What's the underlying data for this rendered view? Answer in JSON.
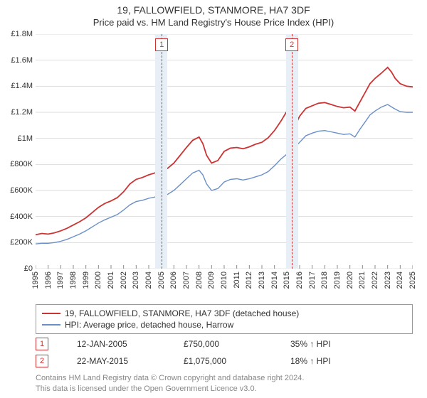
{
  "title": "19, FALLOWFIELD, STANMORE, HA7 3DF",
  "subtitle": "Price paid vs. HM Land Registry's House Price Index (HPI)",
  "chart": {
    "type": "line",
    "background_color": "#ffffff",
    "grid_color": "#dddddd",
    "x": {
      "min": 1995,
      "max": 2025,
      "ticks": [
        1995,
        1996,
        1997,
        1998,
        1999,
        2000,
        2001,
        2002,
        2003,
        2004,
        2005,
        2006,
        2007,
        2008,
        2009,
        2010,
        2011,
        2012,
        2013,
        2014,
        2015,
        2016,
        2017,
        2018,
        2019,
        2020,
        2021,
        2022,
        2023,
        2024,
        2025
      ]
    },
    "y": {
      "min": 0,
      "max": 1800000,
      "ticks": [
        0,
        200000,
        400000,
        600000,
        800000,
        1000000,
        1200000,
        1400000,
        1600000,
        1800000
      ],
      "tick_labels": [
        "£0",
        "£200K",
        "£400K",
        "£600K",
        "£800K",
        "£1M",
        "£1.2M",
        "£1.4M",
        "£1.6M",
        "£1.8M"
      ],
      "label_fontsize": 11
    },
    "series": [
      {
        "name": "property",
        "label": "19, FALLOWFIELD, STANMORE, HA7 3DF (detached house)",
        "color": "#cc3333",
        "width": 1.8,
        "points": [
          [
            1995.0,
            260000
          ],
          [
            1995.5,
            270000
          ],
          [
            1996.0,
            265000
          ],
          [
            1996.5,
            275000
          ],
          [
            1997.0,
            290000
          ],
          [
            1997.5,
            310000
          ],
          [
            1998.0,
            335000
          ],
          [
            1998.5,
            360000
          ],
          [
            1999.0,
            390000
          ],
          [
            1999.5,
            430000
          ],
          [
            2000.0,
            470000
          ],
          [
            2000.5,
            500000
          ],
          [
            2001.0,
            520000
          ],
          [
            2001.5,
            545000
          ],
          [
            2002.0,
            590000
          ],
          [
            2002.5,
            650000
          ],
          [
            2003.0,
            685000
          ],
          [
            2003.5,
            700000
          ],
          [
            2004.0,
            720000
          ],
          [
            2004.5,
            735000
          ],
          [
            2005.0,
            750000
          ],
          [
            2005.5,
            770000
          ],
          [
            2006.0,
            810000
          ],
          [
            2006.5,
            870000
          ],
          [
            2007.0,
            930000
          ],
          [
            2007.5,
            985000
          ],
          [
            2008.0,
            1010000
          ],
          [
            2008.3,
            960000
          ],
          [
            2008.6,
            870000
          ],
          [
            2009.0,
            810000
          ],
          [
            2009.5,
            830000
          ],
          [
            2010.0,
            900000
          ],
          [
            2010.5,
            925000
          ],
          [
            2011.0,
            930000
          ],
          [
            2011.5,
            920000
          ],
          [
            2012.0,
            935000
          ],
          [
            2012.5,
            955000
          ],
          [
            2013.0,
            970000
          ],
          [
            2013.5,
            1005000
          ],
          [
            2014.0,
            1060000
          ],
          [
            2014.5,
            1130000
          ],
          [
            2015.0,
            1210000
          ],
          [
            2015.1,
            1100000
          ],
          [
            2015.4,
            1075000
          ],
          [
            2015.7,
            1110000
          ],
          [
            2016.0,
            1170000
          ],
          [
            2016.5,
            1230000
          ],
          [
            2017.0,
            1250000
          ],
          [
            2017.5,
            1270000
          ],
          [
            2018.0,
            1275000
          ],
          [
            2018.5,
            1260000
          ],
          [
            2019.0,
            1245000
          ],
          [
            2019.5,
            1235000
          ],
          [
            2020.0,
            1240000
          ],
          [
            2020.4,
            1210000
          ],
          [
            2020.8,
            1280000
          ],
          [
            2021.2,
            1350000
          ],
          [
            2021.6,
            1420000
          ],
          [
            2022.0,
            1460000
          ],
          [
            2022.5,
            1500000
          ],
          [
            2023.0,
            1545000
          ],
          [
            2023.3,
            1510000
          ],
          [
            2023.6,
            1460000
          ],
          [
            2024.0,
            1420000
          ],
          [
            2024.5,
            1400000
          ],
          [
            2025.0,
            1395000
          ]
        ]
      },
      {
        "name": "hpi",
        "label": "HPI: Average price, detached house, Harrow",
        "color": "#6a8fc7",
        "width": 1.4,
        "points": [
          [
            1995.0,
            190000
          ],
          [
            1995.5,
            195000
          ],
          [
            1996.0,
            195000
          ],
          [
            1996.5,
            200000
          ],
          [
            1997.0,
            210000
          ],
          [
            1997.5,
            225000
          ],
          [
            1998.0,
            245000
          ],
          [
            1998.5,
            265000
          ],
          [
            1999.0,
            290000
          ],
          [
            1999.5,
            320000
          ],
          [
            2000.0,
            350000
          ],
          [
            2000.5,
            375000
          ],
          [
            2001.0,
            395000
          ],
          [
            2001.5,
            415000
          ],
          [
            2002.0,
            450000
          ],
          [
            2002.5,
            490000
          ],
          [
            2003.0,
            515000
          ],
          [
            2003.5,
            525000
          ],
          [
            2004.0,
            540000
          ],
          [
            2004.5,
            550000
          ],
          [
            2005.0,
            555000
          ],
          [
            2005.5,
            570000
          ],
          [
            2006.0,
            600000
          ],
          [
            2006.5,
            645000
          ],
          [
            2007.0,
            690000
          ],
          [
            2007.5,
            735000
          ],
          [
            2008.0,
            755000
          ],
          [
            2008.3,
            720000
          ],
          [
            2008.6,
            650000
          ],
          [
            2009.0,
            600000
          ],
          [
            2009.5,
            615000
          ],
          [
            2010.0,
            665000
          ],
          [
            2010.5,
            685000
          ],
          [
            2011.0,
            690000
          ],
          [
            2011.5,
            680000
          ],
          [
            2012.0,
            690000
          ],
          [
            2012.5,
            705000
          ],
          [
            2013.0,
            720000
          ],
          [
            2013.5,
            745000
          ],
          [
            2014.0,
            790000
          ],
          [
            2014.5,
            840000
          ],
          [
            2015.0,
            880000
          ],
          [
            2015.5,
            920000
          ],
          [
            2016.0,
            970000
          ],
          [
            2016.5,
            1020000
          ],
          [
            2017.0,
            1040000
          ],
          [
            2017.5,
            1055000
          ],
          [
            2018.0,
            1060000
          ],
          [
            2018.5,
            1050000
          ],
          [
            2019.0,
            1040000
          ],
          [
            2019.5,
            1030000
          ],
          [
            2020.0,
            1035000
          ],
          [
            2020.4,
            1010000
          ],
          [
            2020.8,
            1070000
          ],
          [
            2021.2,
            1125000
          ],
          [
            2021.6,
            1180000
          ],
          [
            2022.0,
            1210000
          ],
          [
            2022.5,
            1240000
          ],
          [
            2023.0,
            1260000
          ],
          [
            2023.5,
            1230000
          ],
          [
            2024.0,
            1205000
          ],
          [
            2024.5,
            1200000
          ],
          [
            2025.0,
            1200000
          ]
        ]
      }
    ],
    "bands": [
      {
        "from": 2004.5,
        "to": 2005.5,
        "color": "#e8eef5"
      },
      {
        "from": 2014.9,
        "to": 2015.9,
        "color": "#e8eef5"
      }
    ],
    "vlines": [
      {
        "x": 2005.04,
        "color": "#cc3333"
      },
      {
        "x": 2015.39,
        "color": "#cc3333"
      }
    ],
    "markers": [
      {
        "x": 2005.04,
        "y": 750000,
        "color": "#cc3333",
        "r": 4
      },
      {
        "x": 2015.39,
        "y": 1075000,
        "color": "#cc3333",
        "r": 4
      }
    ],
    "callouts": [
      {
        "num": "1",
        "x": 2005.04
      },
      {
        "num": "2",
        "x": 2015.39
      }
    ]
  },
  "legend": {
    "items": [
      {
        "color": "#cc3333",
        "label": "19, FALLOWFIELD, STANMORE, HA7 3DF (detached house)"
      },
      {
        "color": "#6a8fc7",
        "label": "HPI: Average price, detached house, Harrow"
      }
    ]
  },
  "events": [
    {
      "num": "1",
      "date": "12-JAN-2005",
      "price": "£750,000",
      "delta": "35% ↑ HPI"
    },
    {
      "num": "2",
      "date": "22-MAY-2015",
      "price": "£1,075,000",
      "delta": "18% ↑ HPI"
    }
  ],
  "footer": {
    "line1": "Contains HM Land Registry data © Crown copyright and database right 2024.",
    "line2": "This data is licensed under the Open Government Licence v3.0."
  }
}
